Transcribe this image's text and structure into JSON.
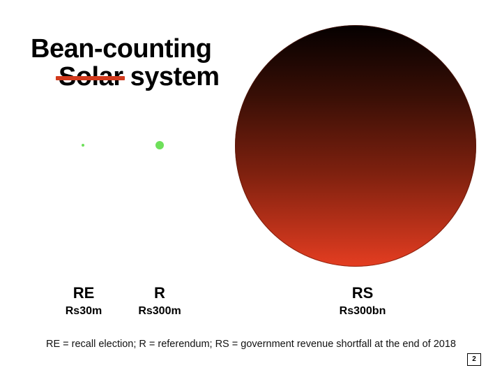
{
  "title": {
    "line1": "Bean-counting",
    "struck_word": "Solar",
    "line2_rest": " system",
    "strike_color": "#d23a1d"
  },
  "items": [
    {
      "abbr": "RE",
      "amount": "Rs30m",
      "color": "#6ee05a"
    },
    {
      "abbr": "R",
      "amount": "Rs300m",
      "color": "#6ee05a"
    },
    {
      "abbr": "RS",
      "amount": "Rs300bn",
      "color_gradient": [
        "#050000",
        "#e43d21"
      ]
    }
  ],
  "footnote": "RE = recall election; R = referendum; RS = government revenue shortfall at the end of 2018",
  "page_number": "2"
}
